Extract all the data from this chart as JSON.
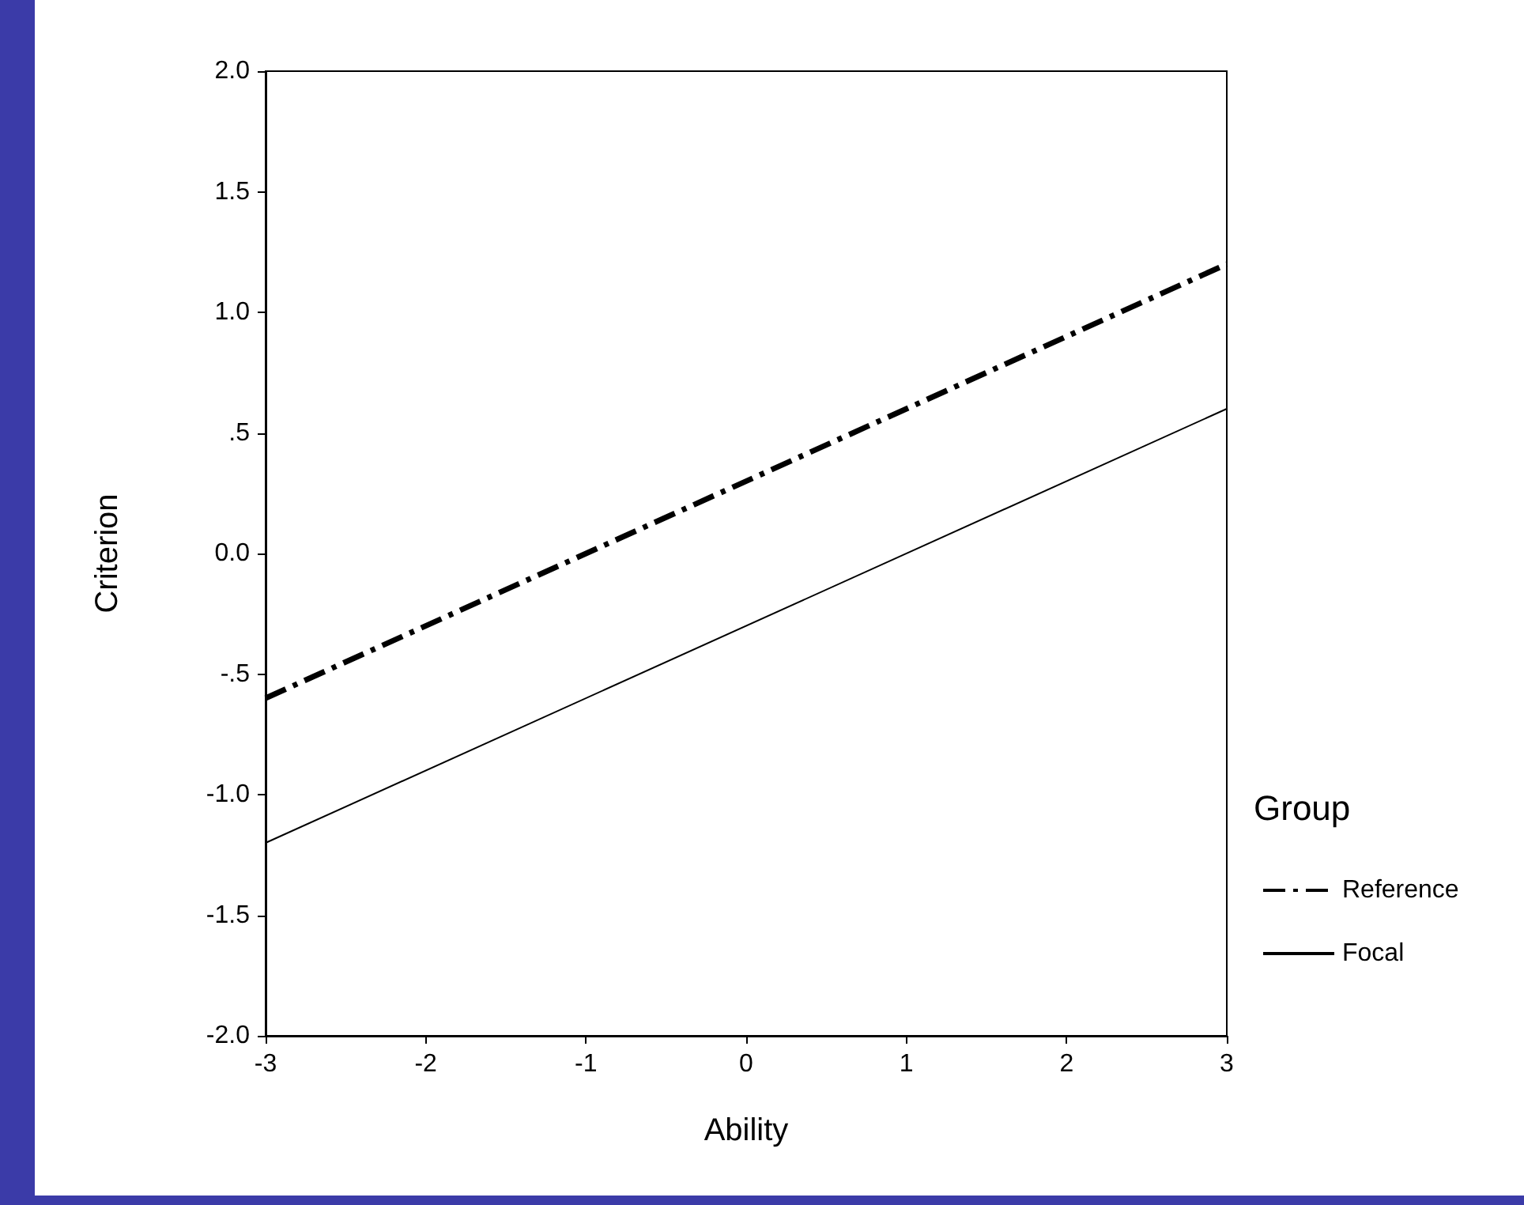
{
  "chart_data": {
    "type": "line",
    "xlabel": "Ability",
    "ylabel": "Criterion",
    "legend_title": "Group",
    "legend": "right",
    "grid": false,
    "marker": "none",
    "x": [
      -3,
      3
    ],
    "xlim": [
      -3,
      3
    ],
    "xticks": [
      -3,
      -2,
      -1,
      0,
      1,
      2,
      3
    ],
    "ylim": [
      -2,
      2
    ],
    "yticks": [
      {
        "value": -2,
        "label": "-2.0"
      },
      {
        "value": -1.5,
        "label": "-1.5"
      },
      {
        "value": -1,
        "label": "-1.0"
      },
      {
        "value": -0.5,
        "label": "-.5"
      },
      {
        "value": 0,
        "label": "0.0"
      },
      {
        "value": 0.5,
        "label": ".5"
      },
      {
        "value": 1,
        "label": "1.0"
      },
      {
        "value": 1.5,
        "label": "1.5"
      },
      {
        "value": 2,
        "label": "2.0"
      }
    ],
    "series": [
      {
        "name": "Reference",
        "color": "#000000",
        "line_style": "dashed",
        "values": [
          -0.6,
          1.2
        ]
      },
      {
        "name": "Focal",
        "color": "#000000",
        "line_style": "solid",
        "values": [
          -1.2,
          0.6
        ]
      }
    ]
  }
}
